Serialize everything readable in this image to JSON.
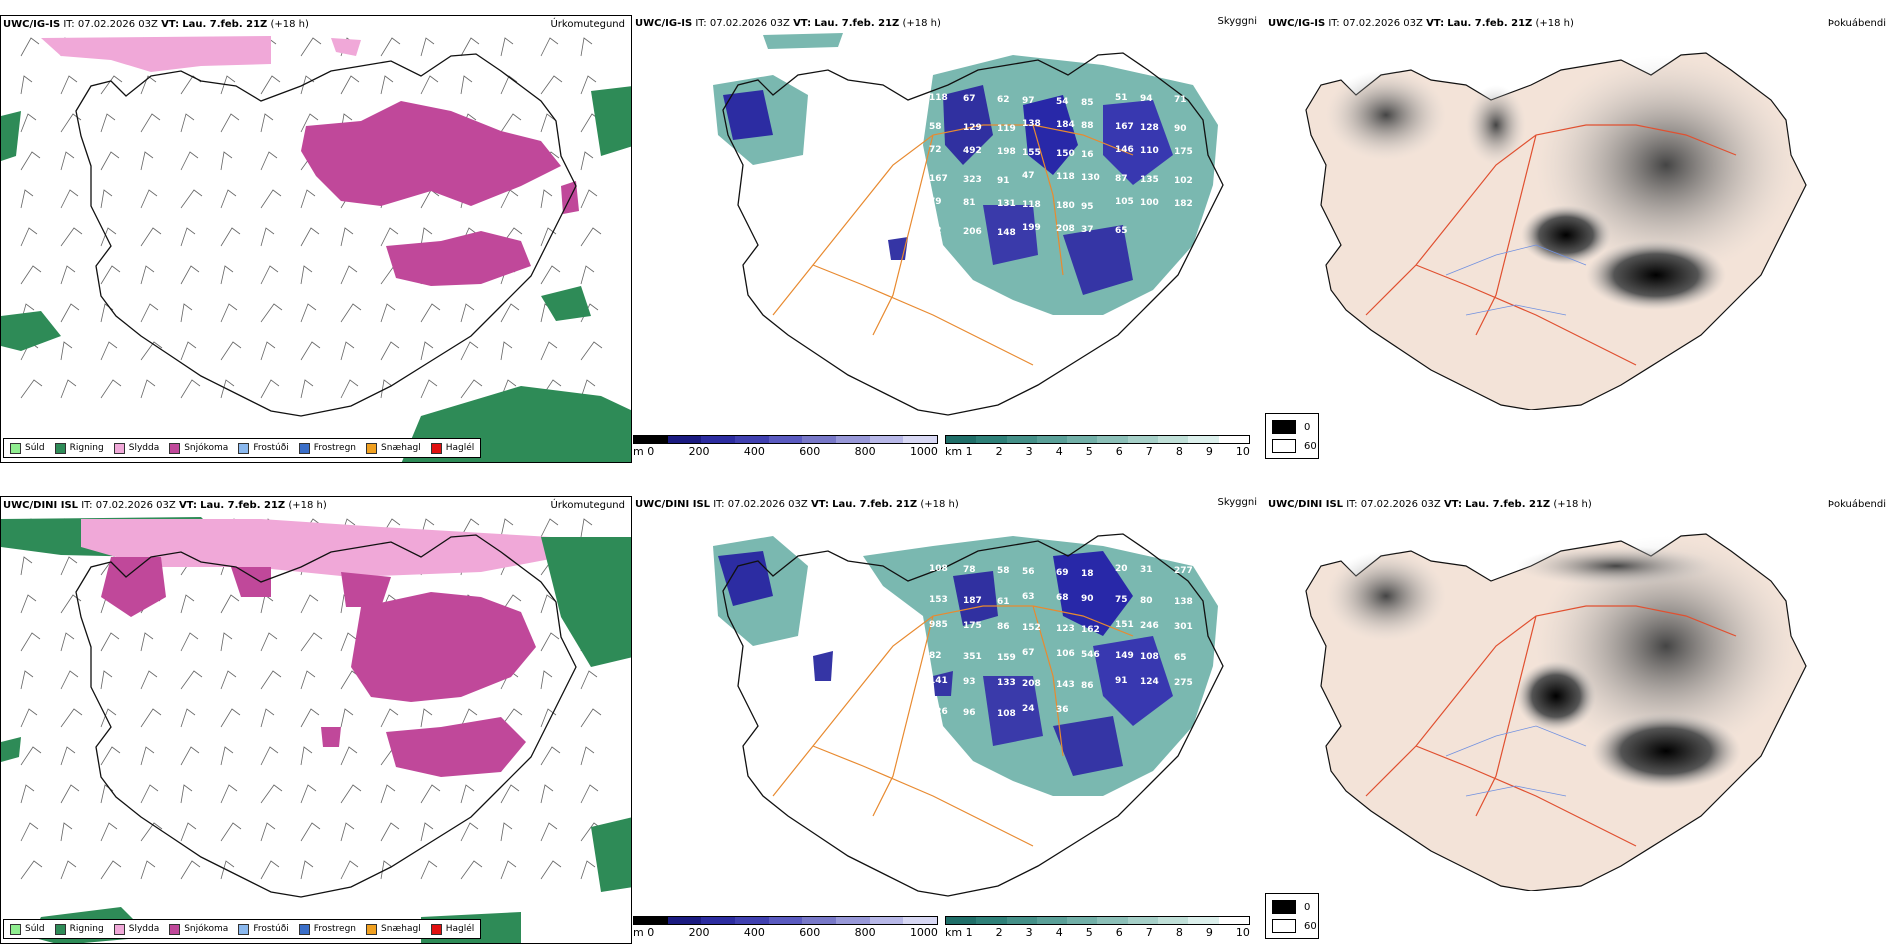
{
  "rows": [
    {
      "model": "UWC/IG-IS",
      "it_label": "IT:",
      "it_value": "07.02.2026 03Z",
      "vt_label": "VT:",
      "vt_value": "Lau. 7.feb. 21Z",
      "lead": "(+18 h)"
    },
    {
      "model": "UWC/DINI ISL",
      "it_label": "IT:",
      "it_value": "07.02.2026 03Z",
      "vt_label": "VT:",
      "vt_value": "Lau. 7.feb. 21Z",
      "lead": "(+18 h)"
    }
  ],
  "fields": {
    "precip_type": "Úrkomutegund",
    "visibility": "Skyggni",
    "fog": "Þokuábendi"
  },
  "precip_legend": [
    {
      "label": "Súld",
      "color": "#90ee90"
    },
    {
      "label": "Rigning",
      "color": "#2e8b57"
    },
    {
      "label": "Slydda",
      "color": "#f0a8d8"
    },
    {
      "label": "Snjókoma",
      "color": "#c0489a"
    },
    {
      "label": "Frostúði",
      "color": "#8ab8ee"
    },
    {
      "label": "Frostregn",
      "color": "#3a6ec8"
    },
    {
      "label": "Snæhagl",
      "color": "#f0a020"
    },
    {
      "label": "Haglél",
      "color": "#e01010"
    }
  ],
  "height_scale": {
    "unit": "m",
    "ticks": [
      "0",
      "200",
      "400",
      "600",
      "800",
      "1000"
    ]
  },
  "visibility_scale": {
    "unit": "km",
    "ticks": [
      "1",
      "2",
      "3",
      "4",
      "5",
      "6",
      "7",
      "8",
      "9",
      "10"
    ]
  },
  "fog_legend": {
    "high": "0",
    "low": "60"
  },
  "top_vis_values": [
    "118",
    "67",
    "62",
    "97",
    "54",
    "85",
    "51",
    "94",
    "71",
    "58",
    "129",
    "119",
    "138",
    "184",
    "88",
    "167",
    "128",
    "90",
    "72",
    "492",
    "198",
    "155",
    "150",
    "16",
    "146",
    "110",
    "175",
    "167",
    "323",
    "91",
    "47",
    "118",
    "130",
    "87",
    "135",
    "102",
    "79",
    "81",
    "131",
    "118",
    "180",
    "95",
    "105",
    "100",
    "182",
    "92",
    "206",
    "148",
    "199",
    "208",
    "37",
    "65"
  ],
  "bottom_vis_values": [
    "108",
    "78",
    "58",
    "56",
    "69",
    "18",
    "20",
    "31",
    "277",
    "153",
    "187",
    "61",
    "63",
    "68",
    "90",
    "75",
    "80",
    "138",
    "985",
    "175",
    "86",
    "152",
    "123",
    "162",
    "151",
    "246",
    "301",
    "82",
    "351",
    "159",
    "67",
    "106",
    "546",
    "149",
    "108",
    "65",
    "141",
    "93",
    "133",
    "208",
    "143",
    "86",
    "91",
    "124",
    "275",
    "126",
    "96",
    "108",
    "24",
    "36"
  ]
}
